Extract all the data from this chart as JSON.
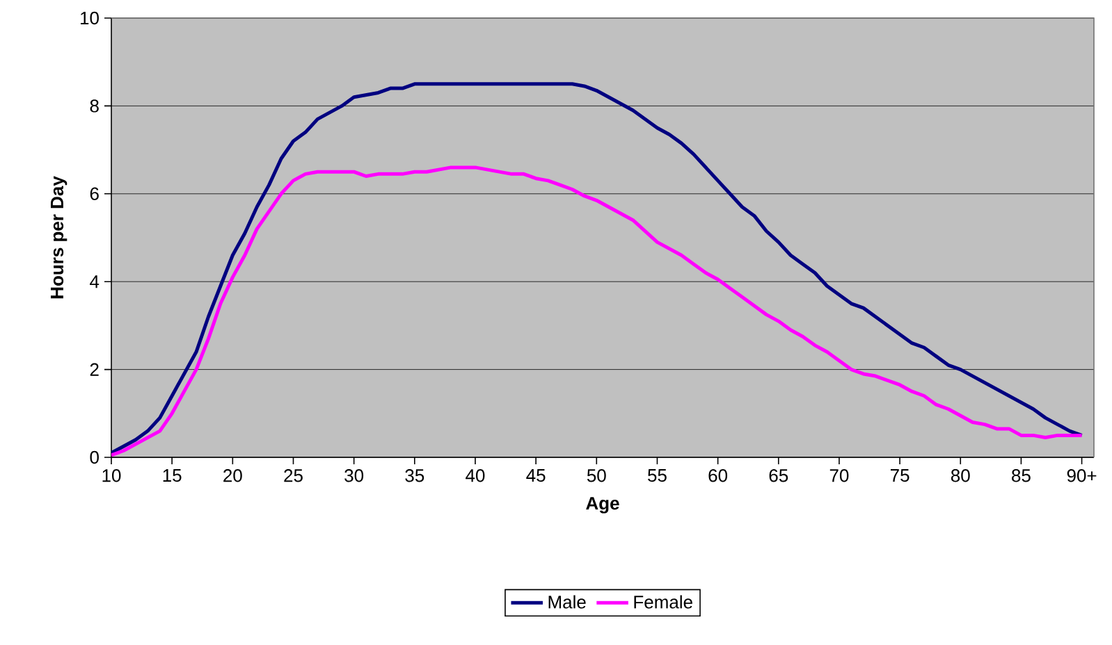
{
  "chart_data": {
    "type": "line",
    "xlabel": "Age",
    "ylabel": "Hours per Day",
    "x": [
      10,
      11,
      12,
      13,
      14,
      15,
      16,
      17,
      18,
      19,
      20,
      21,
      22,
      23,
      24,
      25,
      26,
      27,
      28,
      29,
      30,
      31,
      32,
      33,
      34,
      35,
      36,
      37,
      38,
      39,
      40,
      41,
      42,
      43,
      44,
      45,
      46,
      47,
      48,
      49,
      50,
      51,
      52,
      53,
      54,
      55,
      56,
      57,
      58,
      59,
      60,
      61,
      62,
      63,
      64,
      65,
      66,
      67,
      68,
      69,
      70,
      71,
      72,
      73,
      74,
      75,
      76,
      77,
      78,
      79,
      80,
      81,
      82,
      83,
      84,
      85,
      86,
      87,
      88,
      89,
      90
    ],
    "series": [
      {
        "name": "Male",
        "color": "#000080",
        "values": [
          0.1,
          0.25,
          0.4,
          0.6,
          0.9,
          1.4,
          1.9,
          2.4,
          3.2,
          3.9,
          4.6,
          5.1,
          5.7,
          6.2,
          6.8,
          7.2,
          7.4,
          7.7,
          7.85,
          8.0,
          8.2,
          8.25,
          8.3,
          8.4,
          8.4,
          8.5,
          8.5,
          8.5,
          8.5,
          8.5,
          8.5,
          8.5,
          8.5,
          8.5,
          8.5,
          8.5,
          8.5,
          8.5,
          8.5,
          8.45,
          8.35,
          8.2,
          8.05,
          7.9,
          7.7,
          7.5,
          7.35,
          7.15,
          6.9,
          6.6,
          6.3,
          6.0,
          5.7,
          5.5,
          5.15,
          4.9,
          4.6,
          4.4,
          4.2,
          3.9,
          3.7,
          3.5,
          3.4,
          3.2,
          3.0,
          2.8,
          2.6,
          2.5,
          2.3,
          2.1,
          2.0,
          1.85,
          1.7,
          1.55,
          1.4,
          1.25,
          1.1,
          0.9,
          0.75,
          0.6,
          0.5
        ]
      },
      {
        "name": "Female",
        "color": "#ff00ff",
        "values": [
          0.05,
          0.15,
          0.3,
          0.45,
          0.6,
          1.0,
          1.5,
          2.0,
          2.7,
          3.5,
          4.1,
          4.6,
          5.2,
          5.6,
          6.0,
          6.3,
          6.45,
          6.5,
          6.5,
          6.5,
          6.5,
          6.4,
          6.45,
          6.45,
          6.45,
          6.5,
          6.5,
          6.55,
          6.6,
          6.6,
          6.6,
          6.55,
          6.5,
          6.45,
          6.45,
          6.35,
          6.3,
          6.2,
          6.1,
          5.95,
          5.85,
          5.7,
          5.55,
          5.4,
          5.15,
          4.9,
          4.75,
          4.6,
          4.4,
          4.2,
          4.05,
          3.85,
          3.65,
          3.45,
          3.25,
          3.1,
          2.9,
          2.75,
          2.55,
          2.4,
          2.2,
          2.0,
          1.9,
          1.85,
          1.75,
          1.65,
          1.5,
          1.4,
          1.2,
          1.1,
          0.95,
          0.8,
          0.75,
          0.65,
          0.65,
          0.5,
          0.5,
          0.45,
          0.5,
          0.5,
          0.5
        ]
      }
    ],
    "xlim": [
      10,
      91
    ],
    "xticks": [
      10,
      15,
      20,
      25,
      30,
      35,
      40,
      45,
      50,
      55,
      60,
      65,
      70,
      75,
      80,
      85,
      {
        "value": 90,
        "label": "90+"
      }
    ],
    "ylim": [
      0,
      10
    ],
    "yticks": [
      0,
      2,
      4,
      6,
      8,
      10
    ],
    "grid": "y",
    "legend": "bottom",
    "marker": "none",
    "line_style": "solid"
  }
}
